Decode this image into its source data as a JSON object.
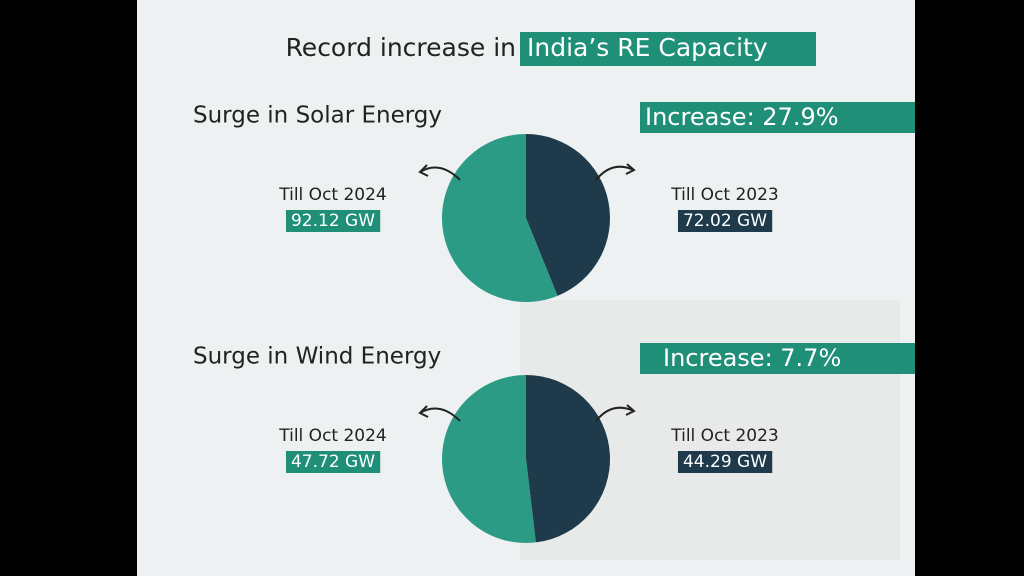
{
  "header": {
    "title": "Record increase in",
    "highlight": "India’s RE Capacity"
  },
  "chart_data": [
    {
      "type": "pie",
      "title": "Surge in Solar Energy",
      "annotation": "Increase: 27.9%",
      "categories": [
        "Till Oct 2024",
        "Till Oct 2023"
      ],
      "values": [
        92.12,
        72.02
      ],
      "value_labels": [
        "92.12 GW",
        "72.02 GW"
      ],
      "colors": [
        "#2b9b85",
        "#1e3a4b"
      ]
    },
    {
      "type": "pie",
      "title": "Surge in Wind Energy",
      "annotation": "Increase: 7.7%",
      "categories": [
        "Till Oct 2024",
        "Till Oct 2023"
      ],
      "values": [
        47.72,
        44.29
      ],
      "value_labels": [
        "47.72 GW",
        "44.29 GW"
      ],
      "colors": [
        "#2b9b85",
        "#1e3a4b"
      ]
    }
  ]
}
